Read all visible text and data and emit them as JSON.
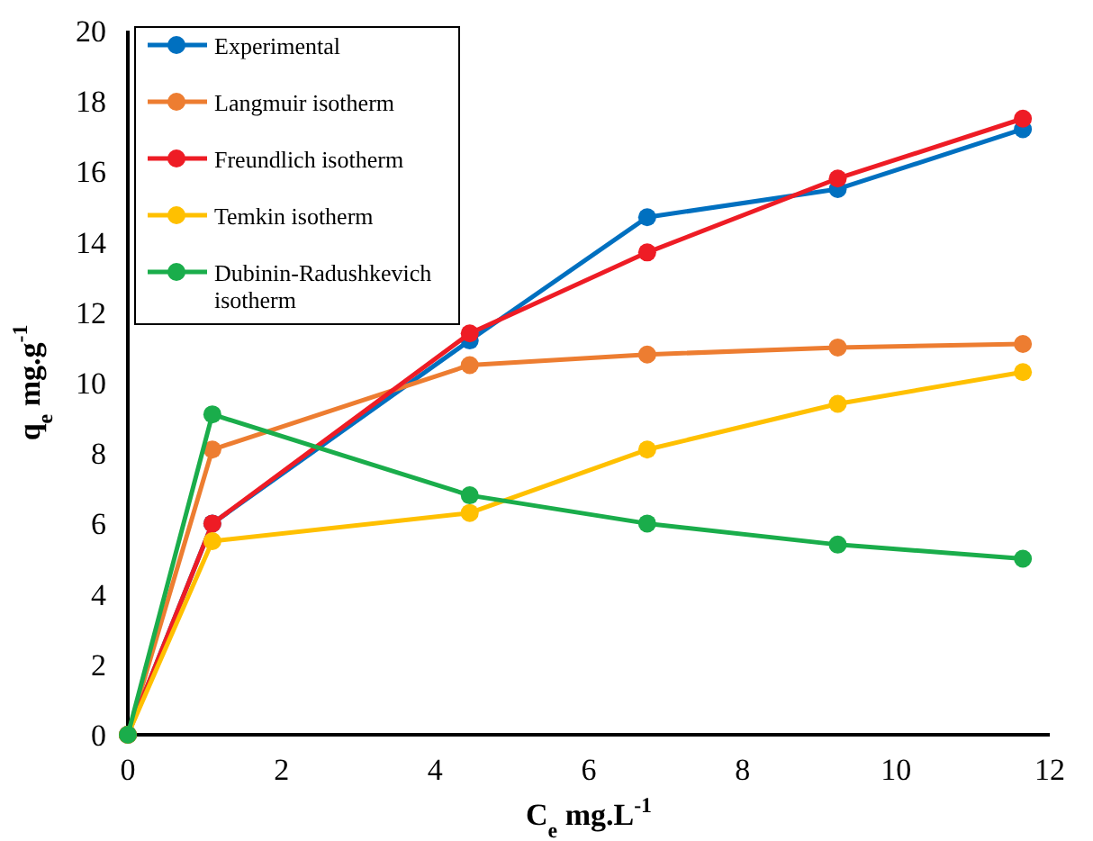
{
  "chart_data": {
    "type": "line",
    "xlabel": "C$_{e}$ mg.L$^{-1}$",
    "ylabel": "q$_{e}$ mg.g$^{-1}$",
    "x": [
      0,
      1.1,
      4.45,
      6.76,
      9.24,
      11.65
    ],
    "xlim": [
      0,
      12
    ],
    "xticks": [
      0,
      2,
      4,
      6,
      8,
      10,
      12
    ],
    "ylim": [
      0,
      20
    ],
    "yticks": [
      0,
      2,
      4,
      6,
      8,
      10,
      12,
      14,
      16,
      18,
      20
    ],
    "grid": false,
    "legend": "top left",
    "marker": "circle",
    "line_style": "solid",
    "series": [
      {
        "name": "Experimental",
        "color": "#0070c0",
        "values": [
          0,
          6.0,
          11.2,
          14.7,
          15.5,
          17.2
        ]
      },
      {
        "name": "Langmuir isotherm",
        "color": "#ed7d31",
        "values": [
          0,
          8.1,
          10.5,
          10.8,
          11.0,
          11.1
        ]
      },
      {
        "name": "Freundlich isotherm",
        "color": "#ee1c25",
        "values": [
          0,
          6.0,
          11.4,
          13.7,
          15.8,
          17.5
        ]
      },
      {
        "name": "Temkin isotherm",
        "color": "#ffc000",
        "values": [
          0,
          5.5,
          6.3,
          8.1,
          9.4,
          10.3
        ]
      },
      {
        "name": "Dubinin-Radushkevich isotherm",
        "color": "#1aad4b",
        "values": [
          0,
          9.1,
          6.8,
          6.0,
          5.4,
          5.0
        ]
      }
    ]
  }
}
